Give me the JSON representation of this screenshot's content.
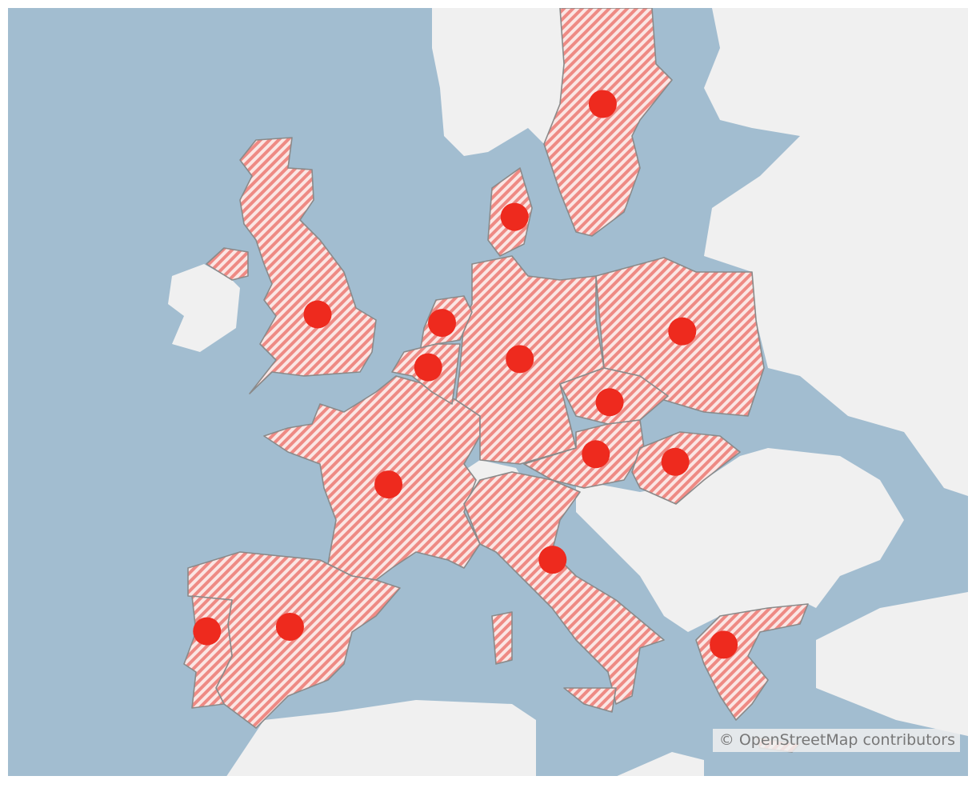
{
  "map": {
    "colors": {
      "sea": "#a2bdd0",
      "land": "#f0f0f0",
      "highlight_hatch": "#ee8a84",
      "border": "#8a8a8a",
      "marker": "#ee2a1e"
    },
    "highlight_style": "diagonal-hatch",
    "markers": [
      {
        "lon": 15.0,
        "lat": 59.3
      },
      {
        "lon": 9.9,
        "lat": 55.8
      },
      {
        "lon": -1.5,
        "lat": 52.5
      },
      {
        "lon": 5.7,
        "lat": 52.2
      },
      {
        "lon": 4.9,
        "lat": 50.6
      },
      {
        "lon": 10.2,
        "lat": 50.9
      },
      {
        "lon": 19.6,
        "lat": 51.9
      },
      {
        "lon": 15.4,
        "lat": 49.3
      },
      {
        "lon": 14.6,
        "lat": 47.3
      },
      {
        "lon": 19.2,
        "lat": 47.0
      },
      {
        "lon": 2.6,
        "lat": 46.1
      },
      {
        "lon": 12.1,
        "lat": 43.0
      },
      {
        "lon": -3.1,
        "lat": 40.1
      },
      {
        "lon": -7.9,
        "lat": 39.9
      },
      {
        "lon": 22.0,
        "lat": 39.3
      }
    ]
  },
  "attribution": "© OpenStreetMap contributors"
}
